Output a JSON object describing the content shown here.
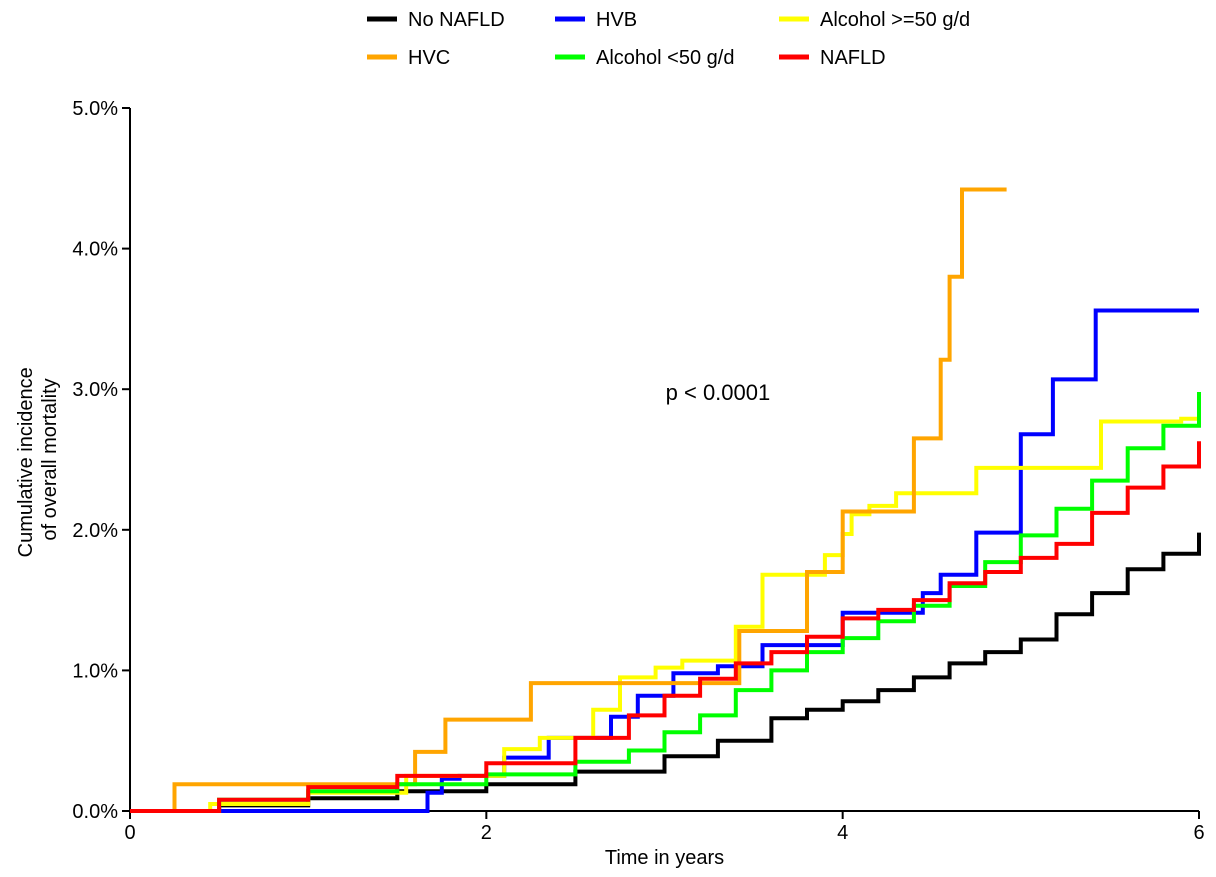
{
  "chart_data": {
    "type": "line",
    "step": true,
    "xlabel": "Time in years",
    "ylabel_lines": [
      "Cumulative incidence",
      "of overall mortality"
    ],
    "xlim": [
      0,
      6
    ],
    "ylim": [
      0,
      0.05
    ],
    "x_ticks": [
      0,
      2,
      4,
      6
    ],
    "x_tick_labels": [
      "0",
      "2",
      "4",
      "6"
    ],
    "y_ticks": [
      0,
      0.01,
      0.02,
      0.03,
      0.04,
      0.05
    ],
    "y_tick_labels": [
      "0.0%",
      "1.0%",
      "2.0%",
      "3.0%",
      "4.0%",
      "5.0%"
    ],
    "annotation": "p < 0.0001",
    "annotation_pos": {
      "x": 3.3,
      "y": 0.0298
    },
    "grid": false,
    "legend_position": "top",
    "series": [
      {
        "name": "No NAFLD",
        "color": "#000000",
        "x": [
          0,
          0.5,
          1.0,
          1.5,
          2.0,
          2.5,
          3.0,
          3.3,
          3.6,
          3.8,
          4.0,
          4.2,
          4.4,
          4.6,
          4.8,
          5.0,
          5.2,
          5.4,
          5.6,
          5.8,
          6.0
        ],
        "y": [
          0,
          0.0004,
          0.0009,
          0.0014,
          0.0019,
          0.0028,
          0.0039,
          0.005,
          0.0066,
          0.0072,
          0.0078,
          0.0086,
          0.0095,
          0.0105,
          0.0113,
          0.0122,
          0.014,
          0.0155,
          0.0172,
          0.0183,
          0.0198
        ]
      },
      {
        "name": "HVB",
        "color": "#0000ff",
        "x": [
          0,
          1.67,
          1.75,
          1.85,
          2.1,
          2.35,
          2.7,
          2.85,
          3.05,
          3.3,
          3.55,
          3.8,
          4.0,
          4.45,
          4.55,
          4.75,
          5.0,
          5.18,
          5.42,
          6.0
        ],
        "y": [
          0,
          0.0013,
          0.0023,
          0.0025,
          0.0038,
          0.0052,
          0.0067,
          0.0082,
          0.0098,
          0.0103,
          0.0118,
          0.0118,
          0.0141,
          0.0155,
          0.0168,
          0.0198,
          0.0268,
          0.0307,
          0.0356,
          0.0356
        ]
      },
      {
        "name": "Alcohol >=50 g/d",
        "color": "#ffff00",
        "x": [
          0,
          0.45,
          1.0,
          1.55,
          2.1,
          2.3,
          2.6,
          2.75,
          2.95,
          3.1,
          3.4,
          3.55,
          3.75,
          3.9,
          4.0,
          4.05,
          4.15,
          4.3,
          4.4,
          4.75,
          5.0,
          5.45,
          5.9,
          6.0
        ],
        "y": [
          0,
          0.0005,
          0.0013,
          0.0025,
          0.0044,
          0.0052,
          0.0072,
          0.0095,
          0.0102,
          0.0107,
          0.0131,
          0.0168,
          0.0168,
          0.0182,
          0.0197,
          0.0211,
          0.0217,
          0.0226,
          0.0226,
          0.0244,
          0.0244,
          0.0277,
          0.0279,
          0.0279
        ]
      },
      {
        "name": "HVC",
        "color": "#ffa500",
        "x": [
          0,
          0.25,
          1.6,
          1.77,
          2.25,
          2.7,
          3.42,
          3.8,
          4.0,
          4.4,
          4.55,
          4.6,
          4.67,
          4.92
        ],
        "y": [
          0,
          0.0019,
          0.0042,
          0.0065,
          0.0091,
          0.0091,
          0.0128,
          0.017,
          0.0213,
          0.0265,
          0.0321,
          0.038,
          0.0442,
          0.0442
        ]
      },
      {
        "name": "Alcohol <50 g/d",
        "color": "#00ff00",
        "x": [
          0,
          0.5,
          1.0,
          1.5,
          2.0,
          2.5,
          2.8,
          3.0,
          3.2,
          3.4,
          3.6,
          3.8,
          4.0,
          4.2,
          4.4,
          4.6,
          4.8,
          5.0,
          5.2,
          5.4,
          5.6,
          5.8,
          6.0
        ],
        "y": [
          0,
          0.0008,
          0.0014,
          0.0019,
          0.0026,
          0.0035,
          0.0043,
          0.0056,
          0.0068,
          0.0086,
          0.01,
          0.0113,
          0.0123,
          0.0135,
          0.0146,
          0.016,
          0.0177,
          0.0196,
          0.0215,
          0.0235,
          0.0258,
          0.0274,
          0.0298
        ]
      },
      {
        "name": "NAFLD",
        "color": "#ff0000",
        "x": [
          0,
          0.5,
          1.0,
          1.5,
          2.0,
          2.5,
          2.8,
          3.0,
          3.2,
          3.4,
          3.6,
          3.8,
          4.0,
          4.2,
          4.4,
          4.6,
          4.8,
          5.0,
          5.2,
          5.4,
          5.6,
          5.8,
          6.0
        ],
        "y": [
          0,
          0.0008,
          0.0017,
          0.0025,
          0.0034,
          0.0052,
          0.0068,
          0.0082,
          0.0094,
          0.0105,
          0.0113,
          0.0124,
          0.0137,
          0.0143,
          0.015,
          0.0162,
          0.017,
          0.018,
          0.019,
          0.0212,
          0.023,
          0.0245,
          0.0263
        ]
      }
    ],
    "legend_rows": [
      [
        "No NAFLD",
        "HVB",
        "Alcohol >=50 g/d"
      ],
      [
        "HVC",
        "Alcohol <50 g/d",
        "NAFLD"
      ]
    ]
  }
}
